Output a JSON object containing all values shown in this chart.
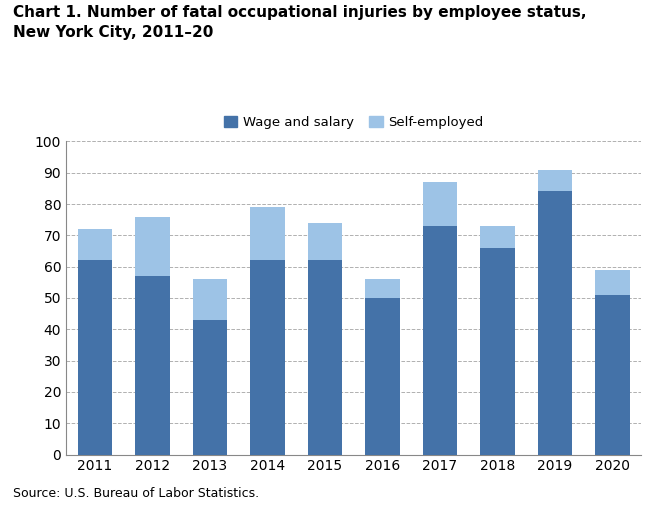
{
  "years": [
    2011,
    2012,
    2013,
    2014,
    2015,
    2016,
    2017,
    2018,
    2019,
    2020
  ],
  "wage_and_salary": [
    62,
    57,
    43,
    62,
    62,
    50,
    73,
    66,
    84,
    51
  ],
  "self_employed": [
    10,
    19,
    13,
    17,
    12,
    6,
    14,
    7,
    7,
    8
  ],
  "wage_color": "#4472A8",
  "self_color": "#9DC3E6",
  "title_line1": "Chart 1. Number of fatal occupational injuries by employee status,",
  "title_line2": "New York City, 2011–20",
  "ylim": [
    0,
    100
  ],
  "yticks": [
    0,
    10,
    20,
    30,
    40,
    50,
    60,
    70,
    80,
    90,
    100
  ],
  "legend_wage": "Wage and salary",
  "legend_self": "Self-employed",
  "source": "Source: U.S. Bureau of Labor Statistics.",
  "background_color": "#ffffff",
  "grid_color": "#b0b0b0",
  "title_fontsize": 11,
  "axis_fontsize": 10,
  "legend_fontsize": 9.5,
  "source_fontsize": 9
}
